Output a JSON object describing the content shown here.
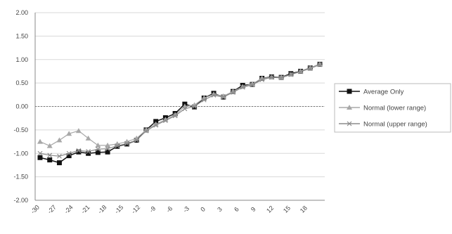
{
  "chart_data": {
    "type": "line",
    "title": "",
    "xlabel": "",
    "ylabel": "",
    "ylim": [
      -2.0,
      2.0
    ],
    "y_ticks": [
      "2.00",
      "1.50",
      "1.00",
      "0.50",
      "0.00",
      "-0.50",
      "-1.00",
      "-1.50",
      "-2.00"
    ],
    "x_tick_labels": [
      "-30",
      "-27",
      "-24",
      "-21",
      "-18",
      "-15",
      "-12",
      "-9",
      "-6",
      "-3",
      "0",
      "3",
      "6",
      "9",
      "12",
      "15",
      "18"
    ],
    "grid": true,
    "legend_position": "right",
    "series": [
      {
        "name": "Average Only",
        "marker": "square",
        "color": "#111111",
        "values": [
          -1.09,
          -1.14,
          -1.2,
          -1.05,
          -0.97,
          -1.0,
          -0.98,
          -0.97,
          -0.85,
          -0.8,
          -0.72,
          -0.5,
          -0.32,
          -0.24,
          -0.15,
          0.05,
          -0.01,
          0.18,
          0.28,
          0.2,
          0.32,
          0.45,
          0.47,
          0.6,
          0.63,
          0.62,
          0.7,
          0.75,
          0.82,
          0.9
        ]
      },
      {
        "name": "Normal (lower range)",
        "marker": "triangle",
        "color": "#a8a8a8",
        "values": [
          -0.75,
          -0.84,
          -0.72,
          -0.58,
          -0.52,
          -0.68,
          -0.83,
          -0.83,
          -0.8,
          -0.75,
          -0.68,
          -0.5,
          -0.38,
          -0.28,
          -0.18,
          0.0,
          0.03,
          0.18,
          0.26,
          0.22,
          0.32,
          0.42,
          0.48,
          0.6,
          0.62,
          0.62,
          0.68,
          0.75,
          0.82,
          0.9
        ]
      },
      {
        "name": "Normal (upper range)",
        "marker": "x",
        "color": "#8c8c8c",
        "values": [
          -1.0,
          -1.04,
          -1.06,
          -1.0,
          -0.94,
          -0.96,
          -0.91,
          -0.9,
          -0.84,
          -0.79,
          -0.72,
          -0.52,
          -0.4,
          -0.3,
          -0.2,
          -0.05,
          0.0,
          0.14,
          0.24,
          0.2,
          0.3,
          0.41,
          0.46,
          0.57,
          0.62,
          0.61,
          0.68,
          0.74,
          0.81,
          0.89
        ]
      }
    ]
  }
}
